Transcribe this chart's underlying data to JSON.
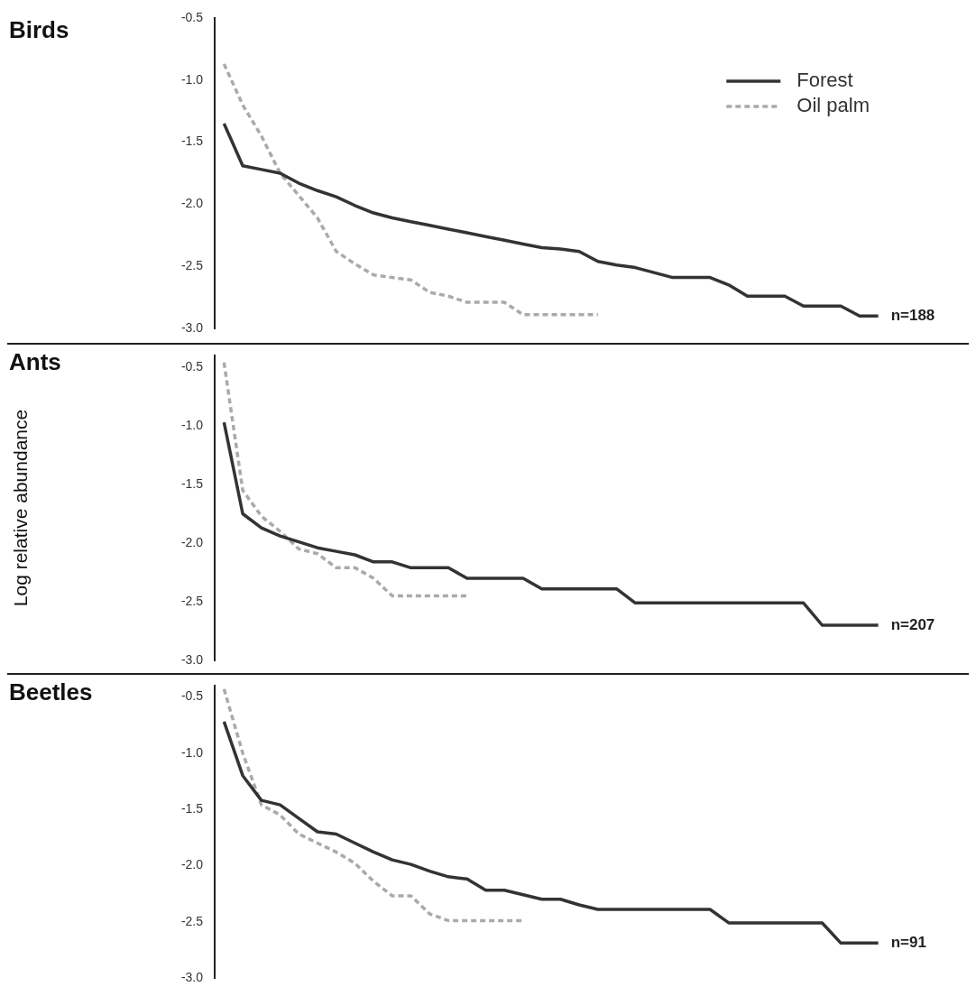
{
  "chart_data": [
    {
      "type": "line",
      "title": "Birds",
      "categories": [
        null,
        null,
        null,
        null,
        null,
        null,
        null,
        null,
        null,
        null,
        null,
        null,
        null,
        null,
        null,
        null,
        null,
        null,
        null,
        null,
        null,
        null,
        null,
        null,
        null,
        null,
        null,
        null,
        null,
        null,
        null,
        null,
        null,
        null,
        null,
        null
      ],
      "series": [
        {
          "name": "Forest",
          "color": "#333333",
          "line_style": "solid",
          "values": [
            -1.35,
            -1.69,
            -1.72,
            -1.75,
            -1.83,
            -1.89,
            -1.94,
            -2.01,
            -2.07,
            -2.11,
            -2.14,
            -2.17,
            -2.2,
            -2.23,
            -2.26,
            -2.29,
            -2.32,
            -2.35,
            -2.36,
            -2.38,
            -2.46,
            -2.49,
            -2.51,
            -2.55,
            -2.59,
            -2.59,
            -2.59,
            -2.65,
            -2.74,
            -2.74,
            -2.74,
            -2.82,
            -2.82,
            -2.82,
            -2.9,
            -2.9
          ]
        },
        {
          "name": "Oil palm",
          "color": "#aaaaaa",
          "line_style": "dashed",
          "values": [
            -0.87,
            -1.2,
            -1.45,
            -1.75,
            -1.93,
            -2.11,
            -2.38,
            -2.48,
            -2.57,
            -2.59,
            -2.61,
            -2.71,
            -2.74,
            -2.79,
            -2.79,
            -2.79,
            -2.89,
            -2.89,
            -2.89,
            -2.89,
            -2.89,
            null,
            null,
            null,
            null,
            null,
            null,
            null,
            null,
            null,
            null,
            null,
            null,
            null,
            null,
            null
          ]
        }
      ],
      "ylim": [
        -3,
        -0.5
      ],
      "yticks": [
        {
          "value": -3,
          "label": "-3.0"
        },
        {
          "value": -2.5,
          "label": "-2.5"
        },
        {
          "value": -2,
          "label": "-2.0"
        },
        {
          "value": -1.5,
          "label": "-1.5"
        },
        {
          "value": -1,
          "label": "-1.0"
        },
        {
          "value": -0.5,
          "label": "-0.5"
        }
      ],
      "tick_labels": "y",
      "grid": false,
      "legend": "top right",
      "marker": "none",
      "annotations": [
        "n=188"
      ]
    },
    {
      "type": "line",
      "title": "Ants",
      "ylabel": "Log relative abundance",
      "categories": [
        null,
        null,
        null,
        null,
        null,
        null,
        null,
        null,
        null,
        null,
        null,
        null,
        null,
        null,
        null,
        null,
        null,
        null,
        null,
        null,
        null,
        null,
        null,
        null,
        null,
        null,
        null,
        null,
        null,
        null,
        null,
        null,
        null,
        null,
        null,
        null
      ],
      "series": [
        {
          "color": "#333333",
          "line_style": "solid",
          "values": [
            -0.97,
            -1.75,
            -1.87,
            -1.94,
            -1.99,
            -2.04,
            -2.07,
            -2.1,
            -2.16,
            -2.16,
            -2.21,
            -2.21,
            -2.21,
            -2.3,
            -2.3,
            -2.3,
            -2.3,
            -2.39,
            -2.39,
            -2.39,
            -2.39,
            -2.39,
            -2.51,
            -2.51,
            -2.51,
            -2.51,
            -2.51,
            -2.51,
            -2.51,
            -2.51,
            -2.51,
            -2.51,
            -2.7,
            -2.7,
            -2.7,
            -2.7
          ]
        },
        {
          "color": "#aaaaaa",
          "line_style": "dashed",
          "values": [
            -0.46,
            -1.55,
            -1.77,
            -1.9,
            -2.05,
            -2.09,
            -2.21,
            -2.21,
            -2.3,
            -2.45,
            -2.45,
            -2.45,
            -2.45,
            -2.45,
            null,
            null,
            null,
            null,
            null,
            null,
            null,
            null,
            null,
            null,
            null,
            null,
            null,
            null,
            null,
            null,
            null,
            null,
            null,
            null,
            null,
            null
          ]
        }
      ],
      "ylim": [
        -3,
        -0.4
      ],
      "yticks": [
        {
          "value": -3,
          "label": "-3.0"
        },
        {
          "value": -2.5,
          "label": "-2.5"
        },
        {
          "value": -2,
          "label": "-2.0"
        },
        {
          "value": -1.5,
          "label": "-1.5"
        },
        {
          "value": -1,
          "label": "-1.0"
        },
        {
          "value": -0.5,
          "label": "-0.5"
        }
      ],
      "tick_labels": "y",
      "grid": false,
      "marker": "none",
      "annotations": [
        "n=207"
      ]
    },
    {
      "type": "line",
      "title": "Beetles",
      "categories": [
        null,
        null,
        null,
        null,
        null,
        null,
        null,
        null,
        null,
        null,
        null,
        null,
        null,
        null,
        null,
        null,
        null,
        null,
        null,
        null,
        null,
        null,
        null,
        null,
        null,
        null,
        null,
        null,
        null,
        null,
        null,
        null,
        null,
        null,
        null,
        null
      ],
      "series": [
        {
          "color": "#333333",
          "line_style": "solid",
          "values": [
            -0.72,
            -1.2,
            -1.42,
            -1.46,
            -1.58,
            -1.7,
            -1.72,
            -1.8,
            -1.88,
            -1.95,
            -1.99,
            -2.05,
            -2.1,
            -2.12,
            -2.22,
            -2.22,
            -2.26,
            -2.3,
            -2.3,
            -2.35,
            -2.39,
            -2.39,
            -2.39,
            -2.39,
            -2.39,
            -2.39,
            -2.39,
            -2.51,
            -2.51,
            -2.51,
            -2.51,
            -2.51,
            -2.51,
            -2.69,
            -2.69,
            -2.69
          ]
        },
        {
          "color": "#aaaaaa",
          "line_style": "dashed",
          "values": [
            -0.43,
            -1.0,
            -1.46,
            -1.55,
            -1.72,
            -1.8,
            -1.88,
            -1.98,
            -2.14,
            -2.27,
            -2.27,
            -2.43,
            -2.49,
            -2.49,
            -2.49,
            -2.49,
            -2.49,
            null,
            null,
            null,
            null,
            null,
            null,
            null,
            null,
            null,
            null,
            null,
            null,
            null,
            null,
            null,
            null,
            null,
            null,
            null
          ]
        }
      ],
      "ylim": [
        -3,
        -0.4
      ],
      "yticks": [
        {
          "value": -3,
          "label": "-3.0"
        },
        {
          "value": -2.5,
          "label": "-2.5"
        },
        {
          "value": -2,
          "label": "-2.0"
        },
        {
          "value": -1.5,
          "label": "-1.5"
        },
        {
          "value": -1,
          "label": "-1.0"
        },
        {
          "value": -0.5,
          "label": "-0.5"
        }
      ],
      "tick_labels": "y",
      "grid": false,
      "marker": "none",
      "annotations": [
        "n=91"
      ]
    }
  ]
}
